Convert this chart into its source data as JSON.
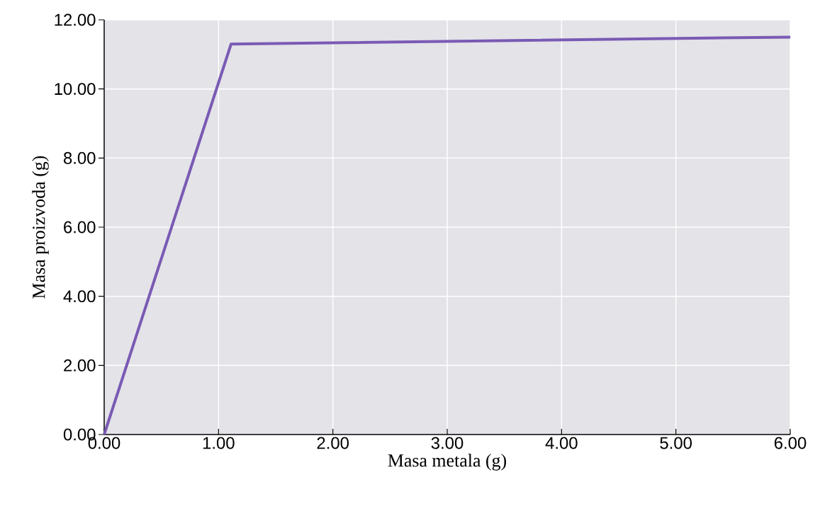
{
  "chart_data": {
    "type": "line",
    "xlabel": "Masa metala (g)",
    "ylabel": "Masa proizvoda (g)",
    "x": [
      0,
      1.11,
      6
    ],
    "series": [
      {
        "color": "#7a5ab4",
        "values": [
          0,
          11.3,
          11.5
        ]
      }
    ],
    "xlim": [
      0,
      6
    ],
    "ylim": [
      0,
      12
    ],
    "xticks": [
      {
        "value": 0,
        "label": "0.00"
      },
      {
        "value": 1,
        "label": "1.00"
      },
      {
        "value": 2,
        "label": "2.00"
      },
      {
        "value": 3,
        "label": "3.00"
      },
      {
        "value": 4,
        "label": "4.00"
      },
      {
        "value": 5,
        "label": "5.00"
      },
      {
        "value": 6,
        "label": "6.00"
      }
    ],
    "yticks": [
      {
        "value": 0,
        "label": "0.00"
      },
      {
        "value": 2,
        "label": "2.00"
      },
      {
        "value": 4,
        "label": "4.00"
      },
      {
        "value": 6,
        "label": "6.00"
      },
      {
        "value": 8,
        "label": "8.00"
      },
      {
        "value": 10,
        "label": "10.00"
      },
      {
        "value": 12,
        "label": "12.00"
      }
    ],
    "grid": true,
    "marker": "none",
    "line_style": "solid"
  }
}
